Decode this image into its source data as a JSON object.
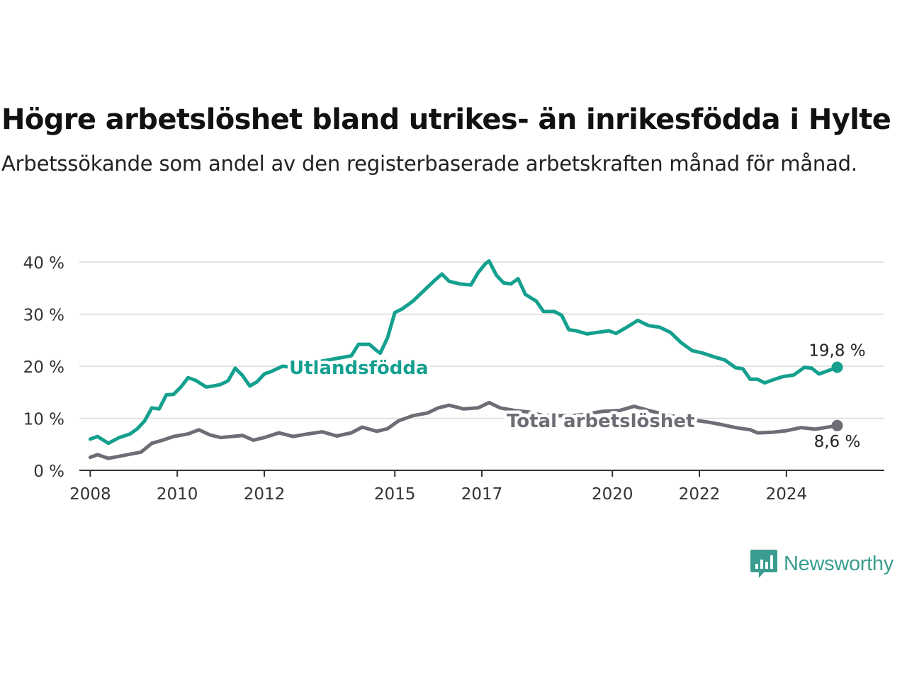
{
  "header": {
    "title": "Högre arbetslöshet bland utrikes- än inrikesfödda i Hylte",
    "subtitle": "Arbetssökande som andel av den registerbaserade arbetskraften månad för månad."
  },
  "brand": {
    "name": "Newsworthy",
    "icon": "newsworthy-logo-icon",
    "color": "#3a9d8f"
  },
  "chart_data": {
    "type": "line",
    "title": "Högre arbetslöshet bland utrikes- än inrikesfödda i Hylte",
    "subtitle": "Arbetssökande som andel av den registerbaserade arbetskraften månad för månad.",
    "x_ticks": [
      "2008",
      "2010",
      "2012",
      "2015",
      "2017",
      "2020",
      "2022",
      "2024"
    ],
    "y_ticks": [
      "0 %",
      "10 %",
      "20 %",
      "30 %",
      "40 %"
    ],
    "ylim": [
      0,
      40
    ],
    "grid": true,
    "series": [
      {
        "name": "Utlandsfödda",
        "color": "#14a08f",
        "end_label": "19,8 %",
        "points": [
          [
            "2008-01",
            6
          ],
          [
            "2008-03",
            6.5
          ],
          [
            "2008-06",
            5.2
          ],
          [
            "2008-09",
            6.3
          ],
          [
            "2008-12",
            7
          ],
          [
            "2009-02",
            8
          ],
          [
            "2009-04",
            9.5
          ],
          [
            "2009-06",
            12
          ],
          [
            "2009-08",
            11.8
          ],
          [
            "2009-10",
            14.5
          ],
          [
            "2009-12",
            14.6
          ],
          [
            "2010-02",
            16
          ],
          [
            "2010-04",
            17.8
          ],
          [
            "2010-06",
            17.3
          ],
          [
            "2010-09",
            16
          ],
          [
            "2010-11",
            16.2
          ],
          [
            "2011-01",
            16.5
          ],
          [
            "2011-03",
            17.2
          ],
          [
            "2011-05",
            19.6
          ],
          [
            "2011-07",
            18.2
          ],
          [
            "2011-09",
            16.2
          ],
          [
            "2011-11",
            17
          ],
          [
            "2012-01",
            18.5
          ],
          [
            "2012-03",
            19
          ],
          [
            "2012-06",
            20
          ],
          [
            "2012-09",
            19.8
          ],
          [
            "2013-01",
            20.5
          ],
          [
            "2013-05",
            21
          ],
          [
            "2013-09",
            21.5
          ],
          [
            "2014-01",
            22
          ],
          [
            "2014-03",
            24.2
          ],
          [
            "2014-06",
            24.2
          ],
          [
            "2014-08",
            23
          ],
          [
            "2014-09",
            22.5
          ],
          [
            "2014-11",
            25.5
          ],
          [
            "2015-01",
            30.3
          ],
          [
            "2015-03",
            31
          ],
          [
            "2015-06",
            32.5
          ],
          [
            "2015-09",
            34.5
          ],
          [
            "2015-12",
            36.5
          ],
          [
            "2016-02",
            37.7
          ],
          [
            "2016-04",
            36.3
          ],
          [
            "2016-07",
            35.8
          ],
          [
            "2016-10",
            35.6
          ],
          [
            "2016-12",
            38
          ],
          [
            "2017-02",
            39.7
          ],
          [
            "2017-03",
            40.2
          ],
          [
            "2017-05",
            37.5
          ],
          [
            "2017-07",
            36
          ],
          [
            "2017-09",
            35.8
          ],
          [
            "2017-11",
            36.8
          ],
          [
            "2018-01",
            33.8
          ],
          [
            "2018-04",
            32.5
          ],
          [
            "2018-06",
            30.5
          ],
          [
            "2018-09",
            30.5
          ],
          [
            "2018-11",
            29.8
          ],
          [
            "2019-01",
            27
          ],
          [
            "2019-03",
            26.8
          ],
          [
            "2019-06",
            26.2
          ],
          [
            "2019-09",
            26.5
          ],
          [
            "2019-12",
            26.8
          ],
          [
            "2020-02",
            26.3
          ],
          [
            "2020-05",
            27.5
          ],
          [
            "2020-08",
            28.8
          ],
          [
            "2020-11",
            27.8
          ],
          [
            "2021-02",
            27.5
          ],
          [
            "2021-05",
            26.5
          ],
          [
            "2021-08",
            24.5
          ],
          [
            "2021-11",
            23
          ],
          [
            "2022-02",
            22.5
          ],
          [
            "2022-05",
            21.8
          ],
          [
            "2022-08",
            21.2
          ],
          [
            "2022-11",
            19.7
          ],
          [
            "2023-01",
            19.5
          ],
          [
            "2023-03",
            17.5
          ],
          [
            "2023-05",
            17.5
          ],
          [
            "2023-07",
            16.8
          ],
          [
            "2023-09",
            17.3
          ],
          [
            "2023-12",
            18
          ],
          [
            "2024-03",
            18.3
          ],
          [
            "2024-06",
            19.8
          ],
          [
            "2024-08",
            19.6
          ],
          [
            "2024-10",
            18.5
          ],
          [
            "2024-12",
            19
          ],
          [
            "2025-03",
            19.8
          ]
        ]
      },
      {
        "name": "Total arbetslöshet",
        "color": "#6e6d75",
        "end_label": "8,6 %",
        "points": [
          [
            "2008-01",
            2.5
          ],
          [
            "2008-03",
            3
          ],
          [
            "2008-06",
            2.3
          ],
          [
            "2008-09",
            2.7
          ],
          [
            "2008-12",
            3.1
          ],
          [
            "2009-03",
            3.5
          ],
          [
            "2009-06",
            5.2
          ],
          [
            "2009-09",
            5.8
          ],
          [
            "2009-12",
            6.5
          ],
          [
            "2010-04",
            7
          ],
          [
            "2010-07",
            7.8
          ],
          [
            "2010-10",
            6.8
          ],
          [
            "2011-01",
            6.3
          ],
          [
            "2011-04",
            6.5
          ],
          [
            "2011-07",
            6.7
          ],
          [
            "2011-10",
            5.8
          ],
          [
            "2012-01",
            6.3
          ],
          [
            "2012-05",
            7.2
          ],
          [
            "2012-09",
            6.5
          ],
          [
            "2013-01",
            7
          ],
          [
            "2013-05",
            7.4
          ],
          [
            "2013-09",
            6.6
          ],
          [
            "2014-01",
            7.2
          ],
          [
            "2014-04",
            8.3
          ],
          [
            "2014-08",
            7.5
          ],
          [
            "2014-11",
            8
          ],
          [
            "2015-02",
            9.5
          ],
          [
            "2015-06",
            10.5
          ],
          [
            "2015-10",
            11
          ],
          [
            "2016-01",
            12
          ],
          [
            "2016-04",
            12.5
          ],
          [
            "2016-08",
            11.8
          ],
          [
            "2016-12",
            12
          ],
          [
            "2017-03",
            13
          ],
          [
            "2017-06",
            12
          ],
          [
            "2017-10",
            11.5
          ],
          [
            "2018-02",
            11.2
          ],
          [
            "2018-06",
            10.5
          ],
          [
            "2018-10",
            10.5
          ],
          [
            "2019-02",
            10.5
          ],
          [
            "2019-06",
            10.8
          ],
          [
            "2019-10",
            11.3
          ],
          [
            "2020-03",
            11.5
          ],
          [
            "2020-07",
            12.3
          ],
          [
            "2020-11",
            11.5
          ],
          [
            "2021-03",
            10.8
          ],
          [
            "2021-07",
            10.2
          ],
          [
            "2021-11",
            9.7
          ],
          [
            "2022-03",
            9.3
          ],
          [
            "2022-07",
            8.8
          ],
          [
            "2022-11",
            8.2
          ],
          [
            "2023-03",
            7.8
          ],
          [
            "2023-05",
            7.2
          ],
          [
            "2023-09",
            7.3
          ],
          [
            "2024-01",
            7.6
          ],
          [
            "2024-05",
            8.2
          ],
          [
            "2024-09",
            7.9
          ],
          [
            "2025-03",
            8.6
          ]
        ]
      }
    ]
  }
}
